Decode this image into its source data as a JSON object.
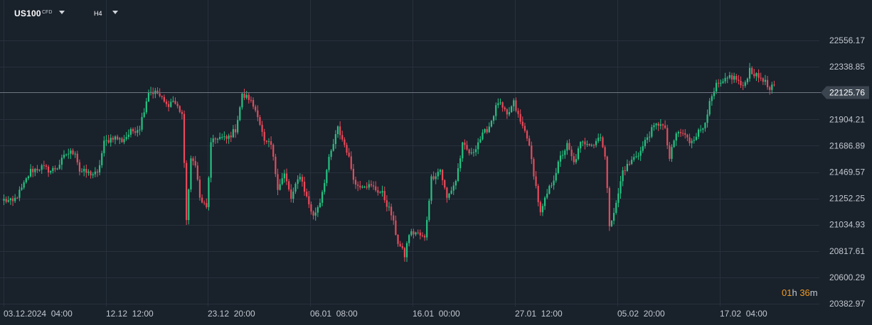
{
  "header": {
    "symbol": "US100",
    "symbol_type": "CFD",
    "interval": "H4"
  },
  "timer": {
    "hours": "01",
    "h_unit": "h",
    "minutes": "36",
    "m_unit": "m"
  },
  "colors": {
    "background": "#19212b",
    "grid": "#27313c",
    "up": "#26c281",
    "down": "#e94a5a",
    "price_line": "#6d7782",
    "price_tag_bg": "#3b4550"
  },
  "chart_data": {
    "type": "candlestick",
    "current_price": "22125.76",
    "current_price_value": 22125.76,
    "y_ticks": [
      "22556.17",
      "22338.85",
      "21904.21",
      "21686.89",
      "21469.57",
      "21252.25",
      "21034.93",
      "20817.61",
      "20600.29",
      "20382.97"
    ],
    "y_tick_values": [
      22556.17,
      22338.85,
      21904.21,
      21686.89,
      21469.57,
      21252.25,
      21034.93,
      20817.61,
      20600.29,
      20382.97
    ],
    "x_ticks": [
      "03.12.2024  04:00",
      "12.12  12:00",
      "23.12  20:00",
      "06.01  08:00",
      "16.01  00:00",
      "27.01  12:00",
      "05.02  20:00",
      "17.02  04:00"
    ],
    "ylim": [
      20382.97,
      22700
    ],
    "grid": true,
    "anchors": [
      [
        0,
        21240
      ],
      [
        4,
        21220
      ],
      [
        8,
        21330
      ],
      [
        12,
        21480
      ],
      [
        17,
        21510
      ],
      [
        21,
        21480
      ],
      [
        24,
        21510
      ],
      [
        28,
        21620
      ],
      [
        32,
        21640
      ],
      [
        34,
        21480
      ],
      [
        38,
        21460
      ],
      [
        42,
        21450
      ],
      [
        45,
        21710
      ],
      [
        49,
        21760
      ],
      [
        53,
        21730
      ],
      [
        57,
        21800
      ],
      [
        61,
        21840
      ],
      [
        65,
        22140
      ],
      [
        69,
        22120
      ],
      [
        73,
        22020
      ],
      [
        76,
        22060
      ],
      [
        80,
        21950
      ],
      [
        82,
        21090
      ],
      [
        84,
        21560
      ],
      [
        86,
        21550
      ],
      [
        88,
        21250
      ],
      [
        91,
        21170
      ],
      [
        93,
        21700
      ],
      [
        96,
        21760
      ],
      [
        100,
        21740
      ],
      [
        104,
        21820
      ],
      [
        107,
        22100
      ],
      [
        110,
        22080
      ],
      [
        114,
        21950
      ],
      [
        117,
        21710
      ],
      [
        120,
        21690
      ],
      [
        123,
        21350
      ],
      [
        126,
        21450
      ],
      [
        129,
        21250
      ],
      [
        133,
        21450
      ],
      [
        136,
        21260
      ],
      [
        139,
        21100
      ],
      [
        142,
        21230
      ],
      [
        146,
        21570
      ],
      [
        150,
        21830
      ],
      [
        154,
        21650
      ],
      [
        158,
        21360
      ],
      [
        162,
        21370
      ],
      [
        166,
        21340
      ],
      [
        170,
        21290
      ],
      [
        174,
        21120
      ],
      [
        177,
        20890
      ],
      [
        180,
        20780
      ],
      [
        182,
        20960
      ],
      [
        185,
        20970
      ],
      [
        189,
        20920
      ],
      [
        192,
        21420
      ],
      [
        196,
        21490
      ],
      [
        199,
        21250
      ],
      [
        203,
        21400
      ],
      [
        206,
        21690
      ],
      [
        210,
        21610
      ],
      [
        213,
        21720
      ],
      [
        218,
        21850
      ],
      [
        222,
        22050
      ],
      [
        226,
        21930
      ],
      [
        229,
        22040
      ],
      [
        232,
        21880
      ],
      [
        235,
        21770
      ],
      [
        238,
        21460
      ],
      [
        241,
        21120
      ],
      [
        244,
        21290
      ],
      [
        247,
        21420
      ],
      [
        250,
        21590
      ],
      [
        253,
        21690
      ],
      [
        256,
        21540
      ],
      [
        259,
        21700
      ],
      [
        262,
        21720
      ],
      [
        265,
        21700
      ],
      [
        268,
        21780
      ],
      [
        270,
        21590
      ],
      [
        272,
        21040
      ],
      [
        275,
        21200
      ],
      [
        278,
        21480
      ],
      [
        281,
        21540
      ],
      [
        284,
        21610
      ],
      [
        286,
        21640
      ],
      [
        289,
        21760
      ],
      [
        292,
        21840
      ],
      [
        295,
        21880
      ],
      [
        297,
        21810
      ],
      [
        299,
        21580
      ],
      [
        302,
        21790
      ],
      [
        305,
        21790
      ],
      [
        308,
        21720
      ],
      [
        311,
        21780
      ],
      [
        314,
        21840
      ],
      [
        317,
        22030
      ],
      [
        320,
        22180
      ],
      [
        323,
        22200
      ],
      [
        326,
        22260
      ],
      [
        329,
        22240
      ],
      [
        332,
        22160
      ],
      [
        335,
        22320
      ],
      [
        338,
        22260
      ],
      [
        341,
        22240
      ],
      [
        344,
        22140
      ],
      [
        346,
        22190
      ]
    ]
  }
}
